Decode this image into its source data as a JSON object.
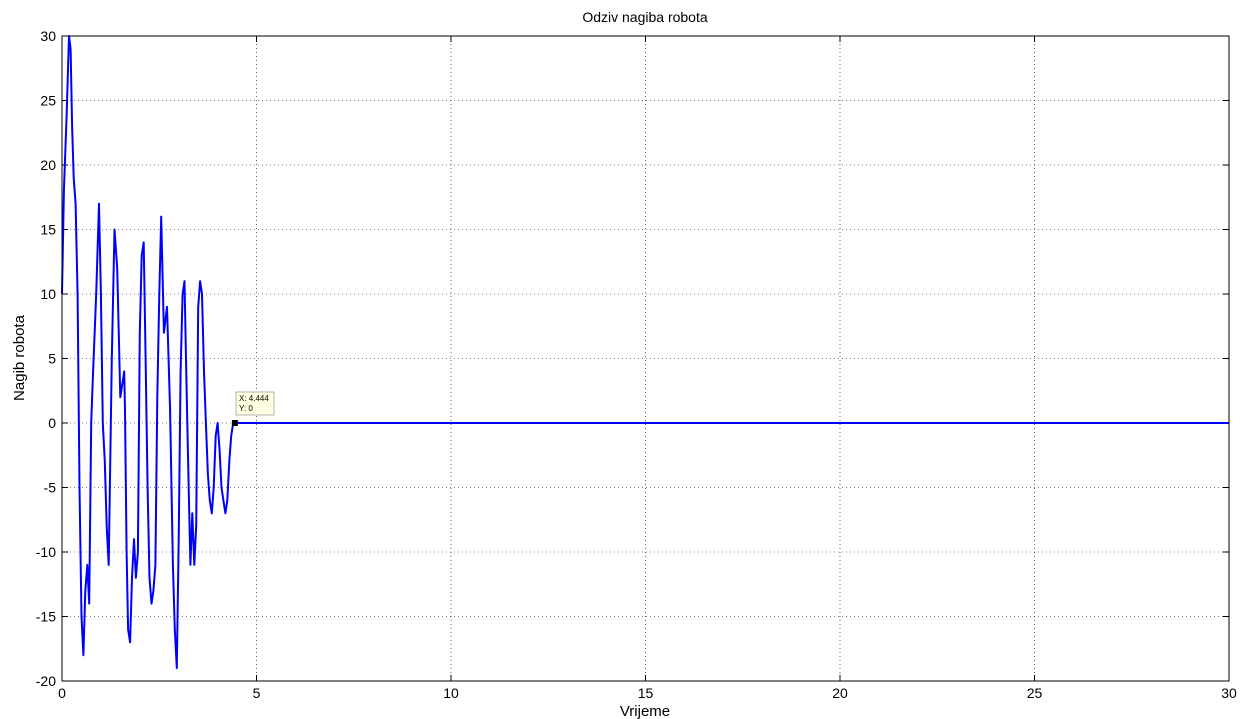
{
  "chart_data": {
    "type": "line",
    "title": "Odziv nagiba robota",
    "xlabel": "Vrijeme",
    "ylabel": "Nagib robota",
    "xlim": [
      0,
      30
    ],
    "ylim": [
      -20,
      30
    ],
    "xticks": [
      0,
      5,
      10,
      15,
      20,
      25,
      30
    ],
    "yticks": [
      -20,
      -15,
      -10,
      -5,
      0,
      5,
      10,
      15,
      20,
      25,
      30
    ],
    "grid": true,
    "line_color": "#0000ff",
    "series": [
      {
        "x": [
          0,
          0.05,
          0.12,
          0.18,
          0.22,
          0.26,
          0.3,
          0.35,
          0.4,
          0.45,
          0.5,
          0.55,
          0.6,
          0.65,
          0.7,
          0.75,
          0.8,
          0.88,
          0.95,
          1.0,
          1.05,
          1.1,
          1.15,
          1.2,
          1.28,
          1.35,
          1.42,
          1.5,
          1.55,
          1.6,
          1.62,
          1.66,
          1.7,
          1.75,
          1.8,
          1.85,
          1.9,
          1.95,
          2.0,
          2.05,
          2.1,
          2.15,
          2.2,
          2.25,
          2.3,
          2.35,
          2.4,
          2.45,
          2.5,
          2.55,
          2.62,
          2.7,
          2.78,
          2.85,
          2.9,
          2.95,
          3.0,
          3.05,
          3.1,
          3.15,
          3.2,
          3.25,
          3.3,
          3.35,
          3.4,
          3.45,
          3.5,
          3.55,
          3.6,
          3.65,
          3.7,
          3.75,
          3.8,
          3.85,
          3.9,
          3.95,
          4.0,
          4.05,
          4.1,
          4.15,
          4.2,
          4.25,
          4.3,
          4.35,
          4.4,
          4.444,
          30
        ],
        "y": [
          10,
          18,
          24,
          30,
          29,
          23,
          19,
          17,
          10,
          -5,
          -15,
          -18,
          -13,
          -11,
          -14,
          0,
          4,
          10,
          17,
          10,
          0,
          -3,
          -8,
          -11,
          5,
          15,
          12,
          2,
          3,
          4,
          1,
          -10,
          -16,
          -17,
          -12,
          -9,
          -12,
          -10,
          7,
          13,
          14,
          5,
          -5,
          -12,
          -14,
          -13,
          -11,
          2,
          10,
          16,
          7,
          9,
          1,
          -11,
          -16,
          -19,
          -9,
          4,
          10,
          11,
          3,
          -4,
          -11,
          -7,
          -11,
          -8,
          9,
          11,
          10,
          4,
          0,
          -4,
          -6,
          -7,
          -5,
          -1,
          0,
          -2,
          -5,
          -6,
          -7,
          -6,
          -3,
          -1,
          0,
          0,
          0
        ]
      }
    ],
    "datatip": {
      "x_text": "X: 4.444",
      "y_text": "Y: 0",
      "x": 4.444,
      "y": 0
    }
  }
}
